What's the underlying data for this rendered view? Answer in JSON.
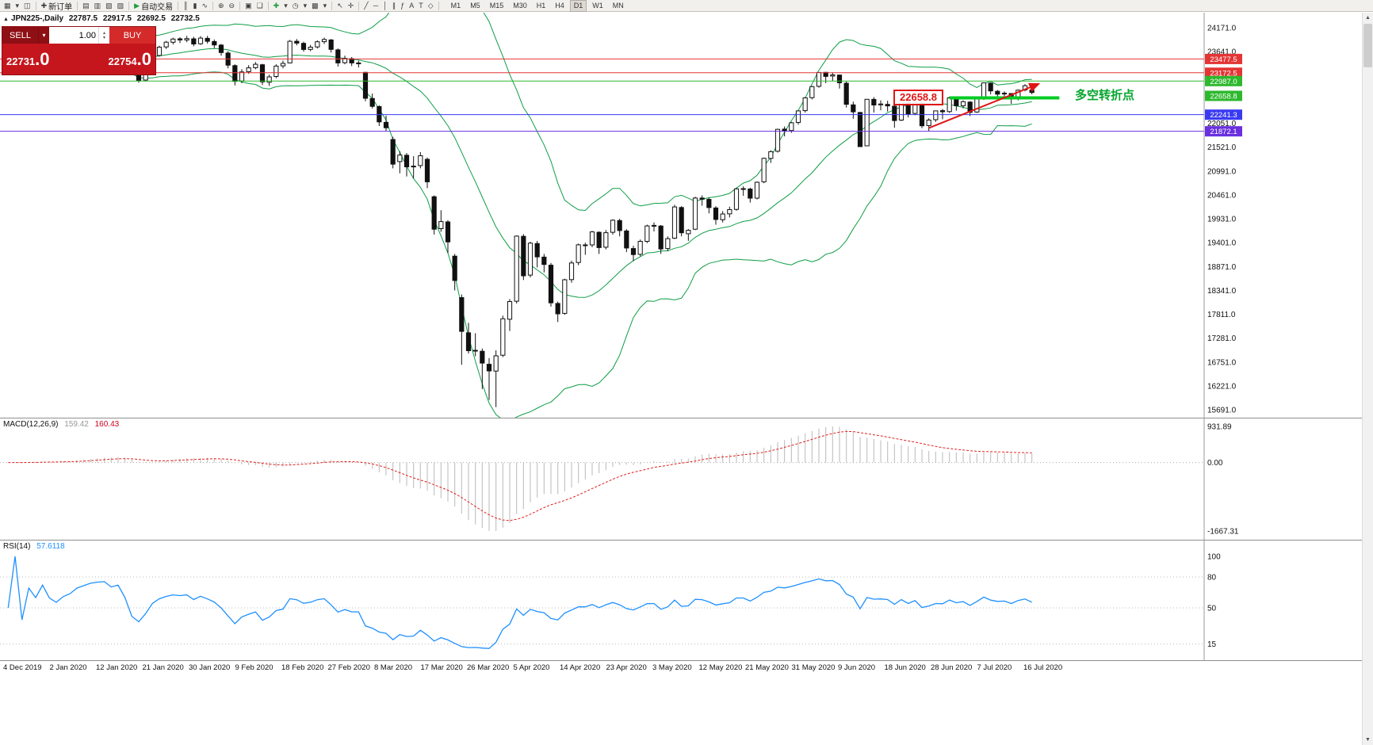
{
  "toolbar": {
    "buttons": [
      {
        "name": "new-chart-icon",
        "glyph": "▦"
      },
      {
        "name": "chart-list-dropdown-icon",
        "glyph": "▾"
      },
      {
        "name": "profiles-icon",
        "glyph": "◫"
      },
      {
        "name": "sep"
      },
      {
        "name": "new-order-button",
        "glyph": "✚",
        "label": "新订单"
      },
      {
        "name": "sep"
      },
      {
        "name": "market-watch-icon",
        "glyph": "▤"
      },
      {
        "name": "data-window-icon",
        "glyph": "▥"
      },
      {
        "name": "navigator-icon",
        "glyph": "▧"
      },
      {
        "name": "terminal-icon",
        "glyph": "▨"
      },
      {
        "name": "sep"
      },
      {
        "name": "auto-trading-button",
        "glyph": "▶",
        "glyph_color": "#1f9d3c",
        "label": "自动交易"
      },
      {
        "name": "sep"
      },
      {
        "name": "bar-chart-icon",
        "glyph": "║"
      },
      {
        "name": "candle-chart-icon",
        "glyph": "▮"
      },
      {
        "name": "line-chart-icon",
        "glyph": "∿"
      },
      {
        "name": "sep"
      },
      {
        "name": "zoom-in-icon",
        "glyph": "⊕"
      },
      {
        "name": "zoom-out-icon",
        "glyph": "⊖"
      },
      {
        "name": "sep"
      },
      {
        "name": "tile-windows-icon",
        "glyph": "▣"
      },
      {
        "name": "auto-arrange-icon",
        "glyph": "❏"
      },
      {
        "name": "sep"
      },
      {
        "name": "indicators-icon",
        "glyph": "✚",
        "glyph_color": "#1f9d3c"
      },
      {
        "name": "indicators-dropdown-icon",
        "glyph": "▾"
      },
      {
        "name": "periods-icon",
        "glyph": "◷"
      },
      {
        "name": "periods-dropdown-icon",
        "glyph": "▾"
      },
      {
        "name": "templates-icon",
        "glyph": "▩"
      },
      {
        "name": "templates-dropdown-icon",
        "glyph": "▾"
      },
      {
        "name": "sep"
      },
      {
        "name": "cursor-icon",
        "glyph": "↖"
      },
      {
        "name": "crosshair-icon",
        "glyph": "✛"
      },
      {
        "name": "sep"
      },
      {
        "name": "trendline-icon",
        "glyph": "╱"
      },
      {
        "name": "horizontal-line-icon",
        "glyph": "─"
      },
      {
        "name": "vertical-line-icon",
        "glyph": "│"
      },
      {
        "name": "equidistant-channel-icon",
        "glyph": "∥"
      },
      {
        "name": "fibonacci-icon",
        "glyph": "ƒ"
      },
      {
        "name": "text-icon",
        "glyph": "A"
      },
      {
        "name": "text-label-icon",
        "glyph": "T"
      },
      {
        "name": "shapes-icon",
        "glyph": "◇"
      },
      {
        "name": "sep"
      }
    ],
    "timeframes": [
      "M1",
      "M5",
      "M15",
      "M30",
      "H1",
      "H4",
      "D1",
      "W1",
      "MN"
    ],
    "active_timeframe": "D1"
  },
  "header": {
    "symbol": "JPN225-,Daily",
    "open": "22787.5",
    "high": "22917.5",
    "low": "22692.5",
    "close": "22732.5"
  },
  "trade_panel": {
    "sell_label": "SELL",
    "buy_label": "BUY",
    "volume": "1.00",
    "sell_price": "22731",
    "sell_price_frac": ".0",
    "buy_price": "22754",
    "buy_price_frac": ".0"
  },
  "annotations": {
    "price_callout": "22658.8",
    "turning_point_label": "多空转折点"
  },
  "axis": {
    "price_labels": [
      24171.0,
      23641.0,
      22051.0,
      21521.0,
      20991.0,
      20461.0,
      19931.0,
      19401.0,
      18871.0,
      18341.0,
      17811.0,
      17281.0,
      16751.0,
      16221.0,
      15691.0
    ],
    "highlighted_labels": [
      {
        "value": "23477.5",
        "price": 23477.5,
        "color": "#e43535"
      },
      {
        "value": "23172.5",
        "price": 23172.5,
        "color": "#e43535"
      },
      {
        "value": "22987.0",
        "price": 22987.0,
        "color": "#2eb82e"
      },
      {
        "value": "22658.8",
        "price": 22658.8,
        "color": "#2eb82e"
      },
      {
        "value": "22241.3",
        "price": 22241.3,
        "color": "#3a3af2"
      },
      {
        "value": "21872.1",
        "price": 21872.1,
        "color": "#6a2fe0"
      }
    ]
  },
  "macd": {
    "label": "MACD(12,26,9)",
    "value_main": "159.42",
    "value_signal": "160.43",
    "scale_max": "931.89",
    "scale_zero": "0.00",
    "scale_min": "-1667.31"
  },
  "rsi": {
    "label": "RSI(14)",
    "value": "57.6118",
    "scale_labels": [
      100,
      80,
      50,
      15
    ],
    "level_lines": [
      80,
      50,
      15
    ]
  },
  "dates": [
    "4 Dec 2019",
    "2 Jan 2020",
    "12 Jan 2020",
    "21 Jan 2020",
    "30 Jan 2020",
    "9 Feb 2020",
    "18 Feb 2020",
    "27 Feb 2020",
    "8 Mar 2020",
    "17 Mar 2020",
    "26 Mar 2020",
    "5 Apr 2020",
    "14 Apr 2020",
    "23 Apr 2020",
    "3 May 2020",
    "12 May 2020",
    "21 May 2020",
    "31 May 2020",
    "9 Jun 2020",
    "18 Jun 2020",
    "28 Jun 2020",
    "7 Jul 2020",
    "16 Jul 2020"
  ],
  "scrollbar": {
    "up_icon": "▲",
    "down_icon": "▼"
  },
  "chart_data": {
    "type": "candlestick",
    "symbol": "JPN225-",
    "timeframe": "Daily",
    "current_bar": {
      "open": 22787.5,
      "high": 22917.5,
      "low": 22692.5,
      "close": 22732.5
    },
    "y_axis": {
      "min": 15691.0,
      "max": 24171.0,
      "step": 530.0
    },
    "indicators": {
      "bollinger": {
        "period": 20,
        "deviation": 2,
        "color": "#0f9d46"
      },
      "macd": {
        "fast": 12,
        "slow": 26,
        "signal": 9
      },
      "rsi": {
        "period": 14
      }
    },
    "overlays": {
      "hlines": [
        {
          "price": 23477.5,
          "color": "#e43535"
        },
        {
          "price": 23172.5,
          "color": "#e43535"
        },
        {
          "price": 22987.0,
          "color": "#2eb82e"
        },
        {
          "price": 22241.3,
          "color": "#3a3af2"
        },
        {
          "price": 21872.1,
          "color": "#6a2fe0"
        }
      ],
      "support_segment": {
        "price": 22615,
        "from_index": 137,
        "to_index": 153,
        "color": "#00cc22",
        "width": 4
      },
      "trendline": {
        "from_index": 134,
        "from_price": 21945,
        "to_index": 150,
        "to_price": 22925,
        "color": "#e01515",
        "width": 2
      }
    },
    "candles": [
      [
        23310,
        23390,
        23260,
        23330
      ],
      [
        23330,
        23430,
        23300,
        23380
      ],
      [
        23385,
        23420,
        23250,
        23300
      ],
      [
        23295,
        23450,
        23280,
        23430
      ],
      [
        23430,
        23480,
        23340,
        23390
      ],
      [
        23395,
        23540,
        23370,
        23520
      ],
      [
        23515,
        23560,
        23400,
        23430
      ],
      [
        23430,
        23480,
        23350,
        23390
      ],
      [
        23385,
        23500,
        23360,
        23470
      ],
      [
        23470,
        23560,
        23430,
        23520
      ],
      [
        23525,
        23660,
        23490,
        23640
      ],
      [
        23640,
        23740,
        23600,
        23710
      ],
      [
        23715,
        23810,
        23680,
        23790
      ],
      [
        23790,
        23870,
        23740,
        23830
      ],
      [
        23830,
        23890,
        23780,
        23850
      ],
      [
        23845,
        23880,
        23740,
        23780
      ],
      [
        23780,
        23870,
        23750,
        23840
      ],
      [
        23835,
        23850,
        23610,
        23650
      ],
      [
        23620,
        23660,
        23130,
        23200
      ],
      [
        23190,
        23240,
        22950,
        23000
      ],
      [
        23010,
        23250,
        22980,
        23210
      ],
      [
        23220,
        23580,
        23200,
        23550
      ],
      [
        23555,
        23770,
        23530,
        23740
      ],
      [
        23745,
        23880,
        23700,
        23850
      ],
      [
        23850,
        23950,
        23800,
        23920
      ],
      [
        23925,
        23960,
        23830,
        23900
      ],
      [
        23900,
        23990,
        23850,
        23930
      ],
      [
        23925,
        23970,
        23760,
        23810
      ],
      [
        23815,
        23985,
        23790,
        23940
      ],
      [
        23935,
        23990,
        23820,
        23870
      ],
      [
        23865,
        23910,
        23720,
        23790
      ],
      [
        23785,
        23810,
        23550,
        23620
      ],
      [
        23610,
        23650,
        23270,
        23340
      ],
      [
        23330,
        23360,
        22890,
        22980
      ],
      [
        22990,
        23250,
        22940,
        23190
      ],
      [
        23195,
        23340,
        23150,
        23280
      ],
      [
        23285,
        23410,
        23250,
        23360
      ],
      [
        23350,
        23370,
        22900,
        22970
      ],
      [
        22960,
        23130,
        22880,
        23080
      ],
      [
        23090,
        23360,
        23050,
        23320
      ],
      [
        23325,
        23440,
        23270,
        23380
      ],
      [
        23390,
        23900,
        23380,
        23870
      ],
      [
        23870,
        23920,
        23780,
        23830
      ],
      [
        23825,
        23860,
        23640,
        23690
      ],
      [
        23690,
        23790,
        23650,
        23740
      ],
      [
        23745,
        23890,
        23710,
        23860
      ],
      [
        23860,
        23950,
        23810,
        23910
      ],
      [
        23900,
        23920,
        23620,
        23690
      ],
      [
        23680,
        23710,
        23310,
        23390
      ],
      [
        23395,
        23550,
        23360,
        23490
      ],
      [
        23485,
        23520,
        23320,
        23390
      ],
      [
        23385,
        23440,
        23290,
        23390
      ],
      [
        23180,
        23190,
        22540,
        22605
      ],
      [
        22600,
        22710,
        22380,
        22426
      ],
      [
        22420,
        22450,
        21990,
        22080
      ],
      [
        22070,
        22220,
        21880,
        21950
      ],
      [
        21690,
        21750,
        21050,
        21143
      ],
      [
        21200,
        21430,
        20940,
        21344
      ],
      [
        21340,
        21390,
        20870,
        21083
      ],
      [
        21090,
        21320,
        20830,
        21100
      ],
      [
        21110,
        21410,
        21050,
        21329
      ],
      [
        21250,
        21290,
        20610,
        20750
      ],
      [
        20420,
        20450,
        19580,
        19699
      ],
      [
        19710,
        20120,
        19640,
        19867
      ],
      [
        19860,
        19900,
        19170,
        19416
      ],
      [
        19100,
        19150,
        18340,
        18560
      ],
      [
        18180,
        18250,
        16690,
        17431
      ],
      [
        17400,
        17620,
        16940,
        17002
      ],
      [
        17000,
        17390,
        16880,
        17011
      ],
      [
        16990,
        17050,
        16150,
        16727
      ],
      [
        16700,
        16840,
        15910,
        16553
      ],
      [
        16550,
        17010,
        15750,
        16888
      ],
      [
        16900,
        17780,
        16860,
        17710
      ],
      [
        17700,
        18150,
        17440,
        18092
      ],
      [
        18100,
        19560,
        18050,
        19546
      ],
      [
        19540,
        19590,
        18570,
        18664
      ],
      [
        18680,
        19420,
        18630,
        19389
      ],
      [
        19380,
        19440,
        18850,
        19085
      ],
      [
        19080,
        19150,
        18740,
        18917
      ],
      [
        18900,
        18950,
        17980,
        18065
      ],
      [
        18050,
        18090,
        17640,
        17820
      ],
      [
        17830,
        18600,
        17800,
        18576
      ],
      [
        18580,
        19000,
        18510,
        18950
      ],
      [
        18960,
        19380,
        18900,
        19353
      ],
      [
        19350,
        19400,
        19130,
        19346
      ],
      [
        19350,
        19660,
        19300,
        19639
      ],
      [
        19630,
        19650,
        19150,
        19290
      ],
      [
        19300,
        19680,
        19250,
        19622
      ],
      [
        19630,
        19920,
        19580,
        19897
      ],
      [
        19890,
        19930,
        19540,
        19669
      ],
      [
        19660,
        19700,
        19190,
        19281
      ],
      [
        19270,
        19330,
        18990,
        19137
      ],
      [
        19140,
        19470,
        19100,
        19429
      ],
      [
        19430,
        19800,
        19390,
        19771
      ],
      [
        19780,
        19850,
        19650,
        19783
      ],
      [
        19770,
        19790,
        19150,
        19262
      ],
      [
        19270,
        19540,
        19210,
        19490
      ],
      [
        19500,
        20240,
        19480,
        20194
      ],
      [
        20180,
        20210,
        19540,
        19619
      ],
      [
        19600,
        19700,
        19440,
        19675
      ],
      [
        19700,
        20420,
        19680,
        20391
      ],
      [
        20390,
        20450,
        20220,
        20366
      ],
      [
        20360,
        20400,
        20050,
        20179
      ],
      [
        20170,
        20210,
        19800,
        19915
      ],
      [
        19910,
        20100,
        19850,
        20037
      ],
      [
        20040,
        20200,
        19960,
        20134
      ],
      [
        20140,
        20620,
        20110,
        20595
      ],
      [
        20600,
        20650,
        20440,
        20596
      ],
      [
        20590,
        20620,
        20290,
        20388
      ],
      [
        20390,
        20760,
        20360,
        20741
      ],
      [
        20750,
        21290,
        20720,
        21271
      ],
      [
        21270,
        21450,
        21170,
        21419
      ],
      [
        21430,
        21930,
        21400,
        21916
      ],
      [
        21920,
        21980,
        21760,
        21878
      ],
      [
        21890,
        22080,
        21840,
        22062
      ],
      [
        22070,
        22340,
        22020,
        22326
      ],
      [
        22330,
        22630,
        22290,
        22614
      ],
      [
        22620,
        22880,
        22580,
        22864
      ],
      [
        22870,
        23180,
        22840,
        23178
      ],
      [
        23180,
        23190,
        22940,
        23091
      ],
      [
        23100,
        23180,
        22990,
        23125
      ],
      [
        23120,
        23130,
        22820,
        22950
      ],
      [
        22940,
        22980,
        22400,
        22472
      ],
      [
        22460,
        22530,
        22150,
        22305
      ],
      [
        22290,
        22300,
        21530,
        21531
      ],
      [
        21550,
        22590,
        21540,
        22582
      ],
      [
        22580,
        22630,
        22290,
        22455
      ],
      [
        22460,
        22560,
        22340,
        22479
      ],
      [
        22470,
        22550,
        22310,
        22437
      ],
      [
        22430,
        22450,
        21950,
        22112
      ],
      [
        22120,
        22540,
        22100,
        22534
      ],
      [
        22530,
        22580,
        22180,
        22259
      ],
      [
        22270,
        22520,
        22230,
        22512
      ],
      [
        22500,
        22510,
        21940,
        21995
      ],
      [
        22000,
        22160,
        21870,
        22122
      ],
      [
        22130,
        22330,
        22080,
        22325
      ],
      [
        22330,
        22370,
        22140,
        22306
      ],
      [
        22310,
        22640,
        22280,
        22614
      ],
      [
        22610,
        22620,
        22330,
        22439
      ],
      [
        22440,
        22560,
        22380,
        22529
      ],
      [
        22520,
        22540,
        22210,
        22291
      ],
      [
        22300,
        22600,
        22280,
        22587
      ],
      [
        22590,
        22950,
        22570,
        22946
      ],
      [
        22940,
        22960,
        22690,
        22770
      ],
      [
        22760,
        22790,
        22580,
        22696
      ],
      [
        22700,
        22760,
        22600,
        22717
      ],
      [
        22710,
        22720,
        22480,
        22587
      ],
      [
        22590,
        22800,
        22560,
        22784
      ],
      [
        22790,
        22920,
        22760,
        22884
      ],
      [
        22788,
        22918,
        22693,
        22733
      ]
    ]
  }
}
